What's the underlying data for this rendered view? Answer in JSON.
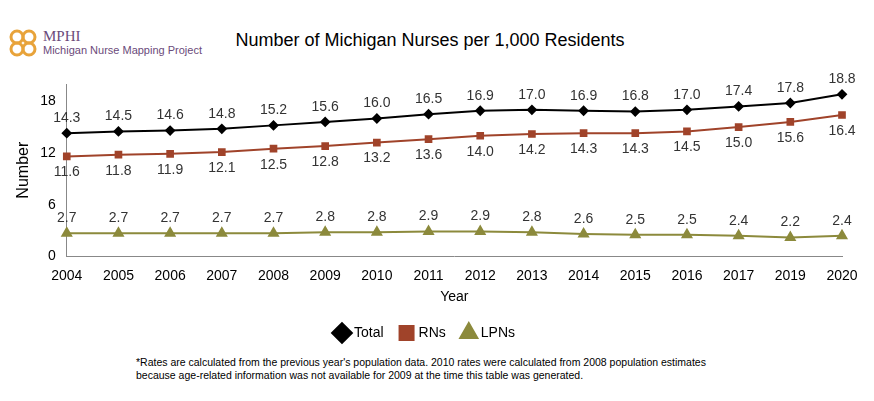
{
  "chart_data": {
    "type": "line",
    "title": "Number of Michigan Nurses per 1,000 Residents",
    "logo": {
      "name": "MPHI",
      "subtitle": "Michigan Nurse Mapping Project"
    },
    "x_label": "Year",
    "y_label": "Number",
    "note": "*Rates are calculated from the previous year's population data. 2010 rates were calculated from 2008 population estimates because age-related information was not available for 2009 at the time this table was generated.",
    "categories": [
      "2004",
      "2005",
      "2006",
      "2007",
      "2008",
      "2009",
      "2010",
      "2011",
      "2012",
      "2013",
      "2014",
      "2015",
      "2016",
      "2017",
      "2019",
      "2020"
    ],
    "series": [
      {
        "name": "Total",
        "color": "#000000",
        "marker": "diamond",
        "values": [
          14.3,
          14.5,
          14.6,
          14.8,
          15.2,
          15.6,
          16.0,
          16.5,
          16.9,
          17.0,
          16.9,
          16.8,
          17.0,
          17.4,
          17.8,
          18.8
        ],
        "value_labels": [
          "14.3",
          "14.5",
          "14.6",
          "14.8",
          "15.2",
          "15.6",
          "16.0",
          "16.5",
          "16.9",
          "17.0",
          "16.9",
          "16.8",
          "17.0",
          "17.4",
          "17.8",
          "18.8"
        ]
      },
      {
        "name": "RNs",
        "color": "#a0432a",
        "marker": "square",
        "values": [
          11.6,
          11.8,
          11.9,
          12.1,
          12.5,
          12.8,
          13.2,
          13.6,
          14.0,
          14.2,
          14.3,
          14.3,
          14.5,
          15.0,
          15.6,
          16.4
        ],
        "value_labels": [
          "11.6",
          "11.8",
          "11.9",
          "12.1",
          "12.5",
          "12.8",
          "13.2",
          "13.6",
          "14.0",
          "14.2",
          "14.3",
          "14.3",
          "14.5",
          "15.0",
          "15.6",
          "16.4"
        ]
      },
      {
        "name": "LPNs",
        "color": "#8c8a3c",
        "marker": "triangle",
        "values": [
          2.7,
          2.7,
          2.7,
          2.7,
          2.7,
          2.8,
          2.8,
          2.9,
          2.9,
          2.8,
          2.6,
          2.5,
          2.5,
          2.4,
          2.2,
          2.4
        ],
        "value_labels": [
          "2.7",
          "2.7",
          "2.7",
          "2.7",
          "2.7",
          "2.8",
          "2.8",
          "2.9",
          "2.9",
          "2.8",
          "2.6",
          "2.5",
          "2.5",
          "2.4",
          "2.2",
          "2.4"
        ]
      }
    ],
    "ylim": [
      0,
      20
    ],
    "yticks": [
      0,
      6,
      12,
      18
    ],
    "grid": false,
    "legend": "bottom",
    "data_labels": true
  }
}
